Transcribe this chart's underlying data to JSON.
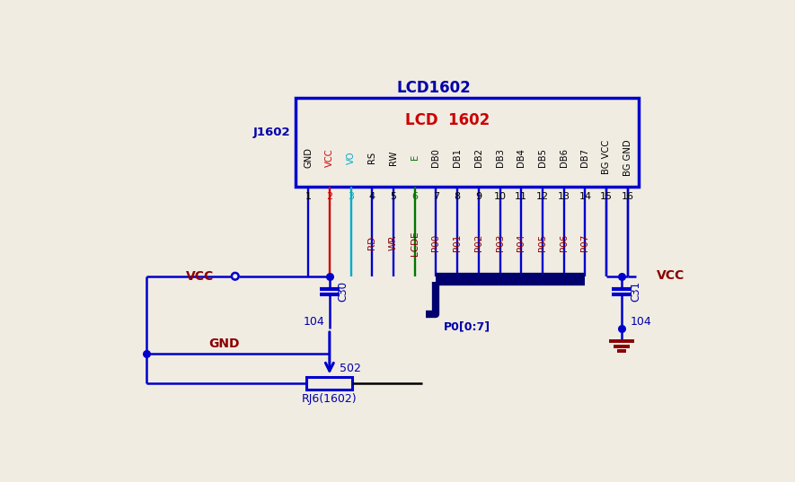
{
  "bg_color": "#f0ece2",
  "blue": "#0000cc",
  "dark_blue": "#0000aa",
  "red": "#cc0000",
  "dark_red": "#8B0000",
  "cyan": "#00aacc",
  "green": "#007700",
  "black": "#000000",
  "navy": "#00006e",
  "title_lcd": "LCD1602",
  "subtitle_lcd": "LCD  1602",
  "j1602": "J1602",
  "pin_labels": [
    "GND",
    "VCC",
    "VO",
    "RS",
    "RW",
    "E",
    "DB0",
    "DB1",
    "DB2",
    "DB3",
    "DB4",
    "DB5",
    "DB6",
    "DB7",
    "BG VCC",
    "BG GND"
  ],
  "pin_numbers": [
    "1",
    "2",
    "3",
    "4",
    "5",
    "6",
    "7",
    "8",
    "9",
    "10",
    "11",
    "12",
    "13",
    "14",
    "15",
    "16"
  ],
  "sig_labels": [
    "RD",
    "WR",
    "LCDE",
    "P00",
    "P01",
    "P02",
    "P03",
    "P04",
    "P05",
    "P06",
    "P07"
  ],
  "sig_pin_idx": [
    3,
    4,
    5,
    6,
    7,
    8,
    9,
    10,
    11,
    12,
    13
  ],
  "vcc_label": "VCC",
  "gnd_label": "GND",
  "c30_label": "C30",
  "c31_label": "C31",
  "cap_val": "104",
  "res_val": "502",
  "res_label": "RJ6(1602)",
  "p0_bus": "P0[0:7]"
}
